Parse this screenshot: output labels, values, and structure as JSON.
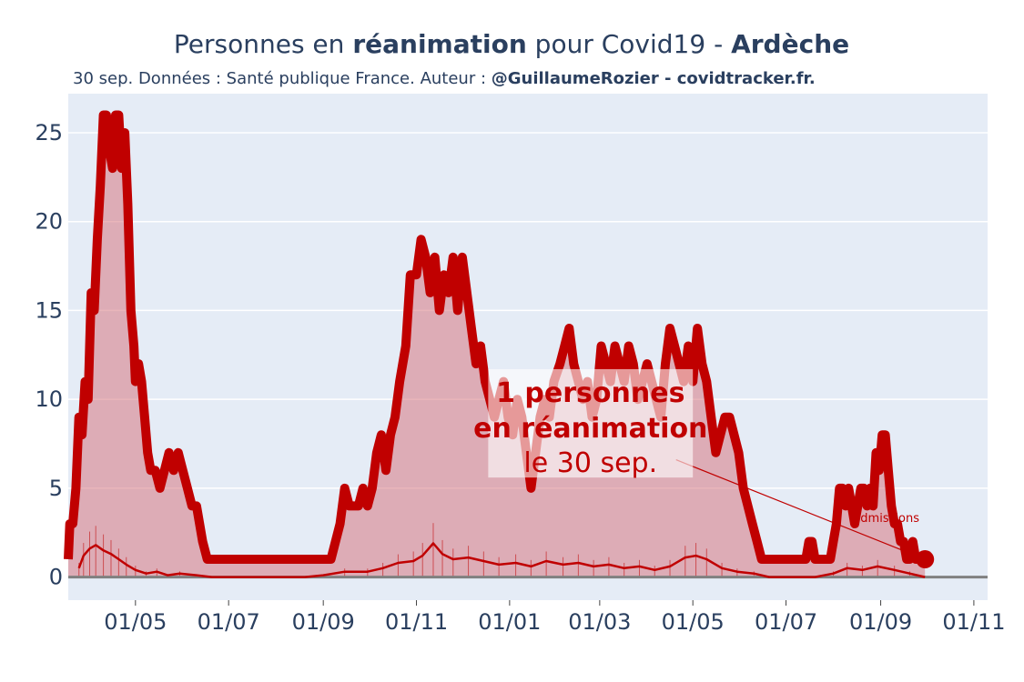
{
  "chart_data": {
    "type": "area",
    "title_parts": [
      {
        "text": "Personnes en ",
        "bold": false
      },
      {
        "text": "réanimation",
        "bold": true
      },
      {
        "text": " pour Covid19 - ",
        "bold": false
      },
      {
        "text": "Ardèche",
        "bold": true
      }
    ],
    "subtitle_parts": [
      {
        "text": "30 sep. Données : Santé publique France. Auteur : ",
        "bold": false
      },
      {
        "text": "@GuillaumeRozier - covidtracker.fr.",
        "bold": true
      }
    ],
    "xlim": [
      "2020-03-18",
      "2021-11-10"
    ],
    "ylim": [
      -1.3,
      27.2
    ],
    "x_ticks": [
      {
        "date": "2020-05-01",
        "label": "01/05"
      },
      {
        "date": "2020-07-01",
        "label": "01/07"
      },
      {
        "date": "2020-09-01",
        "label": "01/09"
      },
      {
        "date": "2020-11-01",
        "label": "01/11"
      },
      {
        "date": "2021-01-01",
        "label": "01/01"
      },
      {
        "date": "2021-03-01",
        "label": "01/03"
      },
      {
        "date": "2021-05-01",
        "label": "01/05"
      },
      {
        "date": "2021-07-01",
        "label": "01/07"
      },
      {
        "date": "2021-09-01",
        "label": "01/09"
      },
      {
        "date": "2021-11-01",
        "label": "01/11"
      }
    ],
    "y_ticks": [
      0,
      5,
      10,
      15,
      20,
      25
    ],
    "grid": true,
    "colors": {
      "plot_bg": "#e5ecf6",
      "grid": "#ffffff",
      "line": "#c00000",
      "fill": "rgba(215,120,130,0.55)",
      "zero_line": "#808080",
      "text": "#2a3f5f"
    },
    "series": [
      {
        "role": "reanimation",
        "points": [
          [
            "2020-03-18",
            1
          ],
          [
            "2020-03-19",
            3
          ],
          [
            "2020-03-21",
            3
          ],
          [
            "2020-03-23",
            5
          ],
          [
            "2020-03-25",
            9
          ],
          [
            "2020-03-27",
            8
          ],
          [
            "2020-03-29",
            11
          ],
          [
            "2020-03-31",
            10
          ],
          [
            "2020-04-02",
            16
          ],
          [
            "2020-04-04",
            15
          ],
          [
            "2020-04-06",
            19
          ],
          [
            "2020-04-08",
            22
          ],
          [
            "2020-04-10",
            26
          ],
          [
            "2020-04-12",
            26
          ],
          [
            "2020-04-14",
            24
          ],
          [
            "2020-04-16",
            23
          ],
          [
            "2020-04-18",
            26
          ],
          [
            "2020-04-20",
            26
          ],
          [
            "2020-04-22",
            23
          ],
          [
            "2020-04-24",
            25
          ],
          [
            "2020-04-26",
            21
          ],
          [
            "2020-04-28",
            15
          ],
          [
            "2020-04-30",
            13
          ],
          [
            "2020-05-01",
            11
          ],
          [
            "2020-05-03",
            12
          ],
          [
            "2020-05-05",
            11
          ],
          [
            "2020-05-07",
            9
          ],
          [
            "2020-05-09",
            7
          ],
          [
            "2020-05-11",
            6
          ],
          [
            "2020-05-14",
            6
          ],
          [
            "2020-05-17",
            5
          ],
          [
            "2020-05-20",
            6
          ],
          [
            "2020-05-23",
            7
          ],
          [
            "2020-05-26",
            6
          ],
          [
            "2020-05-29",
            7
          ],
          [
            "2020-06-01",
            6
          ],
          [
            "2020-06-04",
            5
          ],
          [
            "2020-06-07",
            4
          ],
          [
            "2020-06-10",
            4
          ],
          [
            "2020-06-14",
            2
          ],
          [
            "2020-06-17",
            1
          ],
          [
            "2020-08-31",
            1
          ],
          [
            "2020-09-03",
            1
          ],
          [
            "2020-09-06",
            1
          ],
          [
            "2020-09-09",
            2
          ],
          [
            "2020-09-12",
            3
          ],
          [
            "2020-09-15",
            5
          ],
          [
            "2020-09-18",
            4
          ],
          [
            "2020-09-21",
            4
          ],
          [
            "2020-09-24",
            4
          ],
          [
            "2020-09-27",
            5
          ],
          [
            "2020-09-30",
            4
          ],
          [
            "2020-10-03",
            5
          ],
          [
            "2020-10-06",
            7
          ],
          [
            "2020-10-09",
            8
          ],
          [
            "2020-10-12",
            6
          ],
          [
            "2020-10-15",
            8
          ],
          [
            "2020-10-18",
            9
          ],
          [
            "2020-10-21",
            11
          ],
          [
            "2020-10-25",
            13
          ],
          [
            "2020-10-28",
            17
          ],
          [
            "2020-11-01",
            17
          ],
          [
            "2020-11-04",
            19
          ],
          [
            "2020-11-07",
            18
          ],
          [
            "2020-11-10",
            16
          ],
          [
            "2020-11-13",
            18
          ],
          [
            "2020-11-16",
            15
          ],
          [
            "2020-11-19",
            17
          ],
          [
            "2020-11-22",
            16
          ],
          [
            "2020-11-25",
            18
          ],
          [
            "2020-11-28",
            15
          ],
          [
            "2020-12-01",
            18
          ],
          [
            "2020-12-04",
            16
          ],
          [
            "2020-12-07",
            14
          ],
          [
            "2020-12-10",
            12
          ],
          [
            "2020-12-13",
            13
          ],
          [
            "2020-12-16",
            11
          ],
          [
            "2020-12-19",
            10
          ],
          [
            "2020-12-22",
            9
          ],
          [
            "2020-12-25",
            10
          ],
          [
            "2020-12-28",
            11
          ],
          [
            "2020-12-31",
            9
          ],
          [
            "2021-01-03",
            8
          ],
          [
            "2021-01-06",
            10
          ],
          [
            "2021-01-09",
            9
          ],
          [
            "2021-01-12",
            7
          ],
          [
            "2021-01-15",
            5
          ],
          [
            "2021-01-18",
            7
          ],
          [
            "2021-01-21",
            9
          ],
          [
            "2021-01-24",
            10
          ],
          [
            "2021-01-27",
            9
          ],
          [
            "2021-01-30",
            11
          ],
          [
            "2021-02-03",
            12
          ],
          [
            "2021-02-06",
            13
          ],
          [
            "2021-02-09",
            14
          ],
          [
            "2021-02-12",
            12
          ],
          [
            "2021-02-15",
            11
          ],
          [
            "2021-02-18",
            10
          ],
          [
            "2021-02-21",
            11
          ],
          [
            "2021-02-24",
            9
          ],
          [
            "2021-02-27",
            10
          ],
          [
            "2021-03-02",
            13
          ],
          [
            "2021-03-05",
            12
          ],
          [
            "2021-03-08",
            11
          ],
          [
            "2021-03-11",
            13
          ],
          [
            "2021-03-14",
            12
          ],
          [
            "2021-03-17",
            11
          ],
          [
            "2021-03-20",
            13
          ],
          [
            "2021-03-23",
            12
          ],
          [
            "2021-03-26",
            10
          ],
          [
            "2021-03-29",
            11
          ],
          [
            "2021-04-01",
            12
          ],
          [
            "2021-04-04",
            11
          ],
          [
            "2021-04-07",
            10
          ],
          [
            "2021-04-10",
            9
          ],
          [
            "2021-04-13",
            12
          ],
          [
            "2021-04-16",
            14
          ],
          [
            "2021-04-19",
            13
          ],
          [
            "2021-04-22",
            12
          ],
          [
            "2021-04-25",
            11
          ],
          [
            "2021-04-28",
            13
          ],
          [
            "2021-05-01",
            11
          ],
          [
            "2021-05-04",
            14
          ],
          [
            "2021-05-07",
            12
          ],
          [
            "2021-05-10",
            11
          ],
          [
            "2021-05-13",
            9
          ],
          [
            "2021-05-16",
            7
          ],
          [
            "2021-05-19",
            8
          ],
          [
            "2021-05-22",
            9
          ],
          [
            "2021-05-25",
            9
          ],
          [
            "2021-05-28",
            8
          ],
          [
            "2021-05-31",
            7
          ],
          [
            "2021-06-03",
            5
          ],
          [
            "2021-06-06",
            4
          ],
          [
            "2021-06-09",
            3
          ],
          [
            "2021-06-12",
            2
          ],
          [
            "2021-06-15",
            1
          ],
          [
            "2021-07-14",
            1
          ],
          [
            "2021-07-16",
            2
          ],
          [
            "2021-07-18",
            2
          ],
          [
            "2021-07-20",
            1
          ],
          [
            "2021-07-30",
            1
          ],
          [
            "2021-08-01",
            2
          ],
          [
            "2021-08-03",
            3
          ],
          [
            "2021-08-05",
            5
          ],
          [
            "2021-08-07",
            5
          ],
          [
            "2021-08-09",
            4
          ],
          [
            "2021-08-11",
            5
          ],
          [
            "2021-08-13",
            4
          ],
          [
            "2021-08-15",
            3
          ],
          [
            "2021-08-17",
            4
          ],
          [
            "2021-08-19",
            5
          ],
          [
            "2021-08-21",
            5
          ],
          [
            "2021-08-23",
            4
          ],
          [
            "2021-08-25",
            5
          ],
          [
            "2021-08-27",
            4
          ],
          [
            "2021-08-29",
            7
          ],
          [
            "2021-08-31",
            6
          ],
          [
            "2021-09-02",
            8
          ],
          [
            "2021-09-04",
            8
          ],
          [
            "2021-09-06",
            6
          ],
          [
            "2021-09-08",
            4
          ],
          [
            "2021-09-10",
            3
          ],
          [
            "2021-09-12",
            3
          ],
          [
            "2021-09-14",
            2
          ],
          [
            "2021-09-16",
            2
          ],
          [
            "2021-09-18",
            1
          ],
          [
            "2021-09-20",
            1
          ],
          [
            "2021-09-22",
            2
          ],
          [
            "2021-09-24",
            1
          ],
          [
            "2021-09-26",
            1
          ],
          [
            "2021-09-28",
            1
          ],
          [
            "2021-09-30",
            1
          ]
        ]
      },
      {
        "role": "admissions",
        "name": "admissions",
        "points": [
          [
            "2020-03-25",
            0.5
          ],
          [
            "2020-03-28",
            1.2
          ],
          [
            "2020-04-01",
            1.6
          ],
          [
            "2020-04-05",
            1.8
          ],
          [
            "2020-04-10",
            1.5
          ],
          [
            "2020-04-15",
            1.3
          ],
          [
            "2020-04-20",
            1
          ],
          [
            "2020-04-25",
            0.7
          ],
          [
            "2020-05-01",
            0.4
          ],
          [
            "2020-05-08",
            0.2
          ],
          [
            "2020-05-15",
            0.3
          ],
          [
            "2020-05-22",
            0.1
          ],
          [
            "2020-05-30",
            0.2
          ],
          [
            "2020-06-10",
            0.1
          ],
          [
            "2020-06-20",
            0
          ],
          [
            "2020-08-20",
            0
          ],
          [
            "2020-09-01",
            0.1
          ],
          [
            "2020-09-15",
            0.3
          ],
          [
            "2020-09-30",
            0.3
          ],
          [
            "2020-10-10",
            0.5
          ],
          [
            "2020-10-20",
            0.8
          ],
          [
            "2020-10-30",
            0.9
          ],
          [
            "2020-11-05",
            1.2
          ],
          [
            "2020-11-12",
            1.9
          ],
          [
            "2020-11-18",
            1.3
          ],
          [
            "2020-11-25",
            1
          ],
          [
            "2020-12-05",
            1.1
          ],
          [
            "2020-12-15",
            0.9
          ],
          [
            "2020-12-25",
            0.7
          ],
          [
            "2021-01-05",
            0.8
          ],
          [
            "2021-01-15",
            0.6
          ],
          [
            "2021-01-25",
            0.9
          ],
          [
            "2021-02-05",
            0.7
          ],
          [
            "2021-02-15",
            0.8
          ],
          [
            "2021-02-25",
            0.6
          ],
          [
            "2021-03-07",
            0.7
          ],
          [
            "2021-03-17",
            0.5
          ],
          [
            "2021-03-27",
            0.6
          ],
          [
            "2021-04-06",
            0.4
          ],
          [
            "2021-04-16",
            0.6
          ],
          [
            "2021-04-26",
            1.1
          ],
          [
            "2021-05-03",
            1.2
          ],
          [
            "2021-05-10",
            1
          ],
          [
            "2021-05-20",
            0.5
          ],
          [
            "2021-05-30",
            0.3
          ],
          [
            "2021-06-10",
            0.2
          ],
          [
            "2021-06-20",
            0
          ],
          [
            "2021-07-20",
            0
          ],
          [
            "2021-08-01",
            0.2
          ],
          [
            "2021-08-10",
            0.5
          ],
          [
            "2021-08-20",
            0.4
          ],
          [
            "2021-08-30",
            0.6
          ],
          [
            "2021-09-10",
            0.4
          ],
          [
            "2021-09-20",
            0.2
          ],
          [
            "2021-09-30",
            0
          ]
        ]
      }
    ],
    "last_point": {
      "date": "2021-09-30",
      "value": 1
    },
    "annotation": {
      "line1": "1 personnes",
      "line2": "en réanimation",
      "line3": "le 30 sep."
    }
  }
}
